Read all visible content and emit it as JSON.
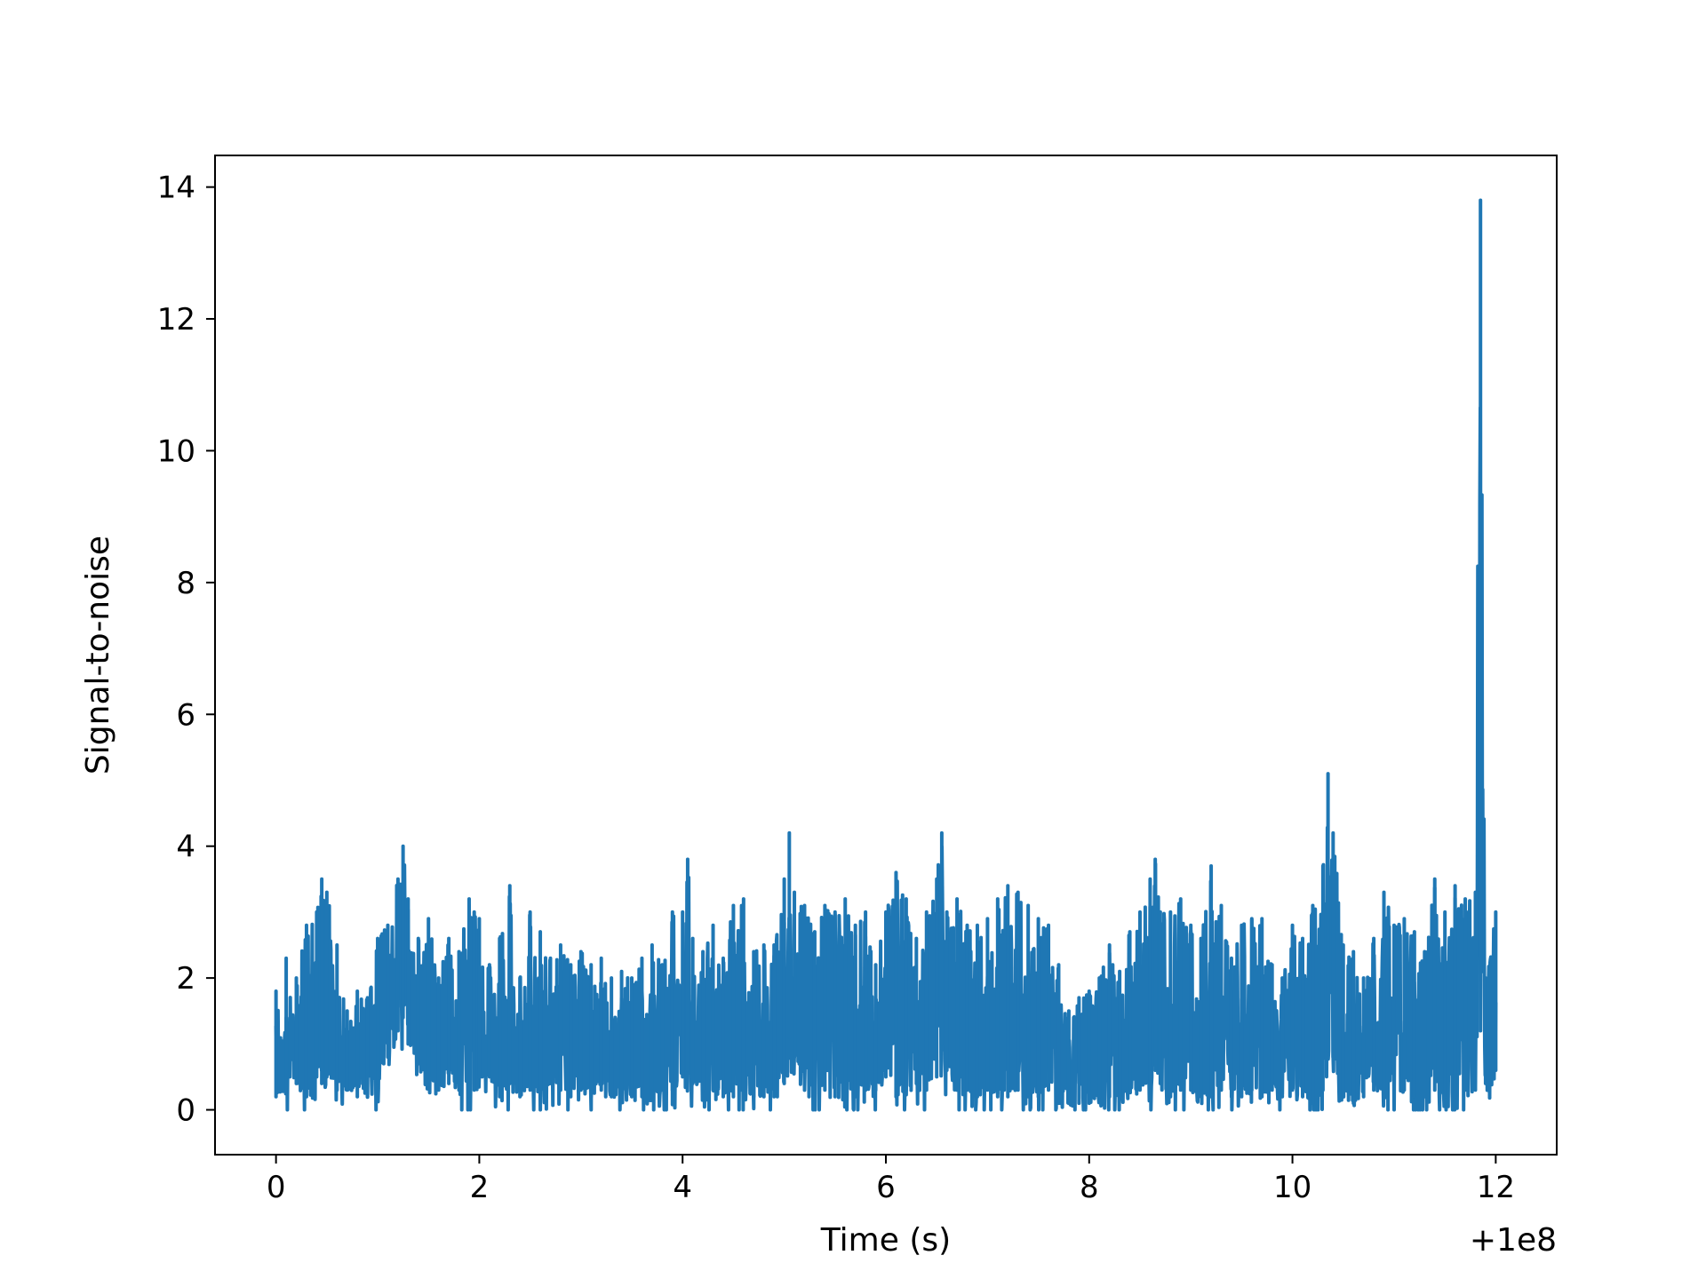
{
  "chart_data": {
    "type": "line",
    "title": "",
    "xlabel": "Time (s)",
    "ylabel": "Signal-to-noise",
    "x_offset_label": "+1e8",
    "xlim": [
      -0.6,
      12.6
    ],
    "ylim": [
      -0.68,
      14.48
    ],
    "xticks": [
      0,
      2,
      4,
      6,
      8,
      10,
      12
    ],
    "yticks": [
      0,
      2,
      4,
      6,
      8,
      10,
      12,
      14
    ],
    "xtick_labels": [
      "0",
      "2",
      "4",
      "6",
      "8",
      "10",
      "12"
    ],
    "ytick_labels": [
      "0",
      "2",
      "4",
      "6",
      "8",
      "10",
      "12",
      "14"
    ],
    "grid": false,
    "series": [
      {
        "color": "#1f77b4",
        "x": [
          0,
          0.1,
          0.2,
          0.3,
          0.4,
          0.45,
          0.5,
          0.6,
          0.7,
          0.8,
          0.9,
          1.0,
          1.1,
          1.2,
          1.25,
          1.3,
          1.4,
          1.5,
          1.6,
          1.7,
          1.8,
          1.9,
          1.95,
          2.0,
          2.1,
          2.2,
          2.3,
          2.4,
          2.5,
          2.6,
          2.7,
          2.8,
          2.9,
          3.0,
          3.1,
          3.2,
          3.3,
          3.4,
          3.5,
          3.6,
          3.7,
          3.8,
          3.9,
          4.0,
          4.05,
          4.1,
          4.2,
          4.3,
          4.4,
          4.5,
          4.6,
          4.7,
          4.8,
          4.9,
          5.0,
          5.05,
          5.1,
          5.2,
          5.3,
          5.4,
          5.5,
          5.6,
          5.7,
          5.8,
          5.9,
          6.0,
          6.1,
          6.2,
          6.3,
          6.4,
          6.5,
          6.55,
          6.6,
          6.7,
          6.8,
          6.9,
          7.0,
          7.1,
          7.2,
          7.3,
          7.4,
          7.5,
          7.6,
          7.7,
          7.8,
          7.9,
          8.0,
          8.1,
          8.2,
          8.3,
          8.4,
          8.5,
          8.6,
          8.65,
          8.7,
          8.8,
          8.9,
          9.0,
          9.1,
          9.2,
          9.3,
          9.4,
          9.5,
          9.6,
          9.7,
          9.8,
          9.9,
          10.0,
          10.1,
          10.2,
          10.3,
          10.35,
          10.4,
          10.5,
          10.6,
          10.7,
          10.8,
          10.9,
          11.0,
          11.1,
          11.2,
          11.3,
          11.4,
          11.5,
          11.6,
          11.7,
          11.8,
          11.85,
          11.9,
          12.0
        ],
        "y_high": [
          1.8,
          2.3,
          2.0,
          2.8,
          3.0,
          3.5,
          3.3,
          2.5,
          1.5,
          1.8,
          1.7,
          2.6,
          2.8,
          3.5,
          4.0,
          3.2,
          2.6,
          2.9,
          2.0,
          2.6,
          2.4,
          3.2,
          3.0,
          2.9,
          2.2,
          2.6,
          3.4,
          2.0,
          3.0,
          2.7,
          2.3,
          2.5,
          2.2,
          2.4,
          2.2,
          2.3,
          2.0,
          2.1,
          2.0,
          2.3,
          2.5,
          2.2,
          3.0,
          3.0,
          3.8,
          2.6,
          2.4,
          2.8,
          2.3,
          3.1,
          3.2,
          2.4,
          2.5,
          2.5,
          3.5,
          4.2,
          3.3,
          3.1,
          2.7,
          3.1,
          3.0,
          3.2,
          2.8,
          3.0,
          2.2,
          3.0,
          3.6,
          3.2,
          2.6,
          3.0,
          3.5,
          4.2,
          3.0,
          3.2,
          2.8,
          2.8,
          2.9,
          3.2,
          3.4,
          3.3,
          3.1,
          2.9,
          2.8,
          2.2,
          1.5,
          1.7,
          1.8,
          2.0,
          2.5,
          2.1,
          2.7,
          3.0,
          3.5,
          3.8,
          3.0,
          3.0,
          3.2,
          2.8,
          2.6,
          3.7,
          3.1,
          2.3,
          2.8,
          2.9,
          2.9,
          2.2,
          2.0,
          2.8,
          2.6,
          3.1,
          3.7,
          5.1,
          4.2,
          2.5,
          2.4,
          2.0,
          2.6,
          3.3,
          2.8,
          2.9,
          2.7,
          2.4,
          3.5,
          3.0,
          3.4,
          3.2,
          3.3,
          13.8,
          2.0,
          3.0
        ],
        "y_low": [
          0.2,
          0.3,
          0.4,
          0.2,
          0.5,
          0.4,
          0.5,
          0.3,
          0.3,
          0.2,
          0.2,
          0.4,
          0.8,
          1.2,
          1.4,
          1.0,
          0.7,
          0.5,
          0.3,
          0.4,
          0.3,
          0.2,
          0.3,
          0.5,
          0.5,
          0.2,
          0.4,
          0.2,
          0.3,
          0.2,
          0.4,
          0.3,
          0.2,
          0.3,
          0.2,
          0.3,
          0.2,
          0.2,
          0.2,
          0.2,
          0.2,
          0.3,
          0.3,
          0.5,
          0.6,
          0.4,
          0.3,
          0.3,
          0.2,
          0.2,
          0.3,
          0.2,
          0.2,
          0.2,
          0.4,
          1.1,
          0.8,
          0.5,
          0.2,
          0.3,
          0.2,
          0.3,
          0.2,
          0.3,
          0.3,
          0.5,
          0.2,
          0.3,
          0.4,
          0.3,
          0.5,
          1.0,
          0.6,
          0.3,
          0.3,
          0.2,
          0.3,
          0.2,
          0.2,
          0.3,
          0.2,
          0.2,
          0.3,
          0.1,
          0.1,
          0.1,
          0.1,
          0.2,
          0.2,
          0.2,
          0.3,
          0.3,
          0.4,
          0.6,
          0.4,
          0.2,
          0.3,
          0.3,
          0.2,
          0.2,
          0.3,
          0.2,
          0.2,
          0.3,
          0.2,
          0.3,
          0.2,
          0.3,
          0.2,
          0.1,
          0.3,
          0.9,
          0.8,
          0.2,
          0.1,
          0.2,
          0.3,
          0.2,
          0.1,
          0.3,
          0.2,
          0.2,
          0.3,
          0.2,
          0.2,
          0.3,
          0.3,
          1.2,
          0.4,
          0.6
        ]
      }
    ]
  }
}
